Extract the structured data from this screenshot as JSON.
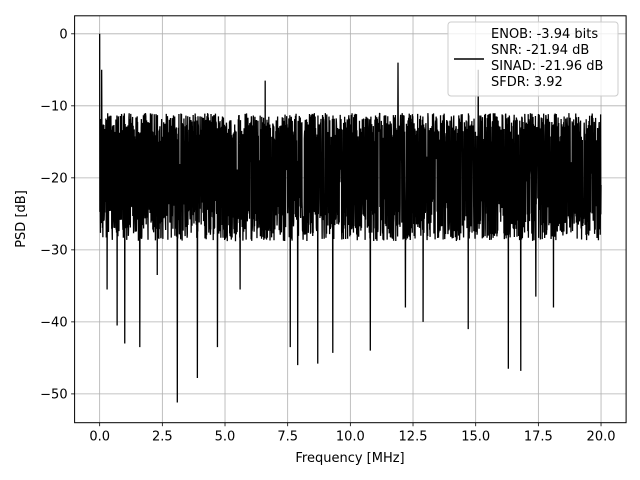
{
  "chart_data": {
    "type": "line",
    "title": "",
    "xlabel": "Frequency [MHz]",
    "ylabel": "PSD [dB]",
    "xlim": [
      -1.0,
      21.0
    ],
    "ylim": [
      -54,
      2.5
    ],
    "x_ticks": [
      0.0,
      2.5,
      5.0,
      7.5,
      10.0,
      12.5,
      15.0,
      17.5,
      20.0
    ],
    "x_tick_labels": [
      "0.0",
      "2.5",
      "5.0",
      "7.5",
      "10.0",
      "12.5",
      "15.0",
      "17.5",
      "20.0"
    ],
    "y_ticks": [
      0,
      -10,
      -20,
      -30,
      -40,
      -50
    ],
    "y_tick_labels": [
      "0",
      "−10",
      "−20",
      "−30",
      "−40",
      "−50"
    ],
    "grid": true,
    "legend_position": "top-right",
    "series": [
      {
        "color": "#000000",
        "x_range": [
          0.0,
          20.0
        ],
        "num_points": 2500,
        "band_top": -11,
        "band_bottom": -27,
        "noise_floor_mean": -19,
        "notable_points": [
          {
            "x": 0.0,
            "y": 0.0
          },
          {
            "x": 0.08,
            "y": -5.0
          },
          {
            "x": 0.15,
            "y": -26.0
          },
          {
            "x": 0.3,
            "y": -35.5
          },
          {
            "x": 0.7,
            "y": -40.5
          },
          {
            "x": 1.0,
            "y": -43.0
          },
          {
            "x": 1.6,
            "y": -43.5
          },
          {
            "x": 2.3,
            "y": -33.5
          },
          {
            "x": 3.1,
            "y": -51.2
          },
          {
            "x": 3.9,
            "y": -47.8
          },
          {
            "x": 4.7,
            "y": -43.5
          },
          {
            "x": 5.6,
            "y": -35.5
          },
          {
            "x": 6.6,
            "y": -6.5
          },
          {
            "x": 7.6,
            "y": -43.5
          },
          {
            "x": 7.9,
            "y": -46.0
          },
          {
            "x": 8.7,
            "y": -45.8
          },
          {
            "x": 9.3,
            "y": -44.3
          },
          {
            "x": 10.8,
            "y": -44.0
          },
          {
            "x": 11.9,
            "y": -4.0
          },
          {
            "x": 12.2,
            "y": -38.0
          },
          {
            "x": 12.9,
            "y": -40.0
          },
          {
            "x": 14.7,
            "y": -41.0
          },
          {
            "x": 15.1,
            "y": -5.0
          },
          {
            "x": 16.3,
            "y": -46.5
          },
          {
            "x": 16.8,
            "y": -46.8
          },
          {
            "x": 17.4,
            "y": -36.5
          },
          {
            "x": 18.1,
            "y": -38.0
          },
          {
            "x": 19.5,
            "y": -28.0
          },
          {
            "x": 20.0,
            "y": -21.0
          }
        ]
      }
    ],
    "legend": {
      "lines": [
        "ENOB: -3.94 bits",
        "SNR: -21.94 dB",
        "SINAD: -21.96 dB",
        "SFDR: 3.92"
      ]
    }
  }
}
